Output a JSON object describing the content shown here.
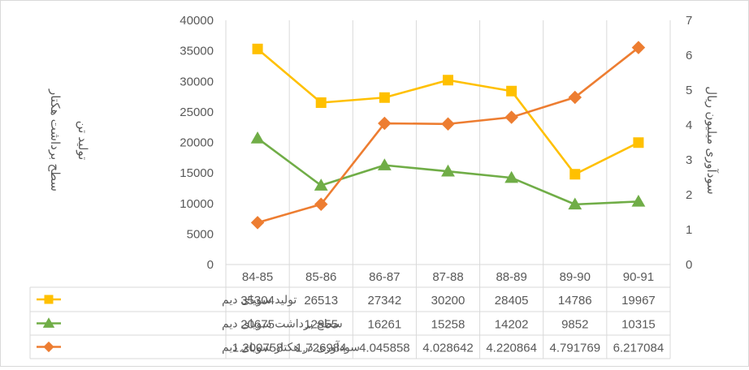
{
  "chart_data": {
    "type": "line",
    "categories": [
      "84-85",
      "85-86",
      "86-87",
      "87-88",
      "88-89",
      "89-90",
      "90-91"
    ],
    "y_left": {
      "label_lines": [
        "تولید  تن",
        "سطح برداشت هکتار"
      ],
      "ticks": [
        "0",
        "5000",
        "10000",
        "15000",
        "20000",
        "25000",
        "30000",
        "35000",
        "40000"
      ],
      "range": [
        0,
        40000
      ]
    },
    "y_right": {
      "label": "سودآوری میلیون ریال",
      "ticks": [
        "0",
        "1",
        "2",
        "3",
        "4",
        "5",
        "6",
        "7"
      ],
      "range": [
        0,
        7
      ]
    },
    "grid": "vertical",
    "legend": "data-table",
    "series": [
      {
        "name": "تولید سویای دیم",
        "axis": "left",
        "marker": "square",
        "color": "#FFC000",
        "values": [
          35304,
          26513,
          27342,
          30200,
          28405,
          14786,
          19967
        ],
        "labels": [
          "35304",
          "26513",
          "27342",
          "30200",
          "28405",
          "14786",
          "19967"
        ]
      },
      {
        "name": "سطح برداشت سویای دیم",
        "axis": "left",
        "marker": "triangle",
        "color": "#70AD47",
        "values": [
          20675,
          12955,
          16261,
          15258,
          14202,
          9852,
          10315
        ],
        "labels": [
          "20675",
          "12955",
          "16261",
          "15258",
          "14202",
          "9852",
          "10315"
        ]
      },
      {
        "name": "سودآوری در هکتار سویای دیم",
        "axis": "right",
        "marker": "diamond",
        "color": "#ED7D31",
        "values": [
          1.200758,
          1.726984,
          4.045858,
          4.028642,
          4.220864,
          4.791769,
          6.217084
        ],
        "labels": [
          "1.200758",
          "1.726984",
          "4.045858",
          "4.028642",
          "4.220864",
          "4.791769",
          "6.217084"
        ]
      }
    ]
  }
}
